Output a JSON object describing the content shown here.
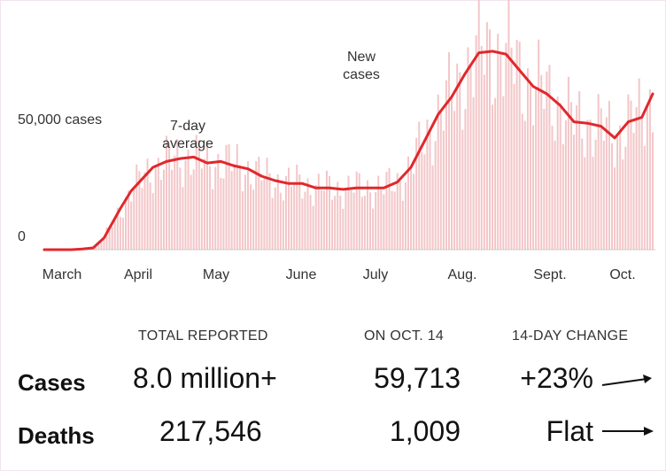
{
  "chart_data": {
    "type": "bar",
    "series": [
      {
        "name": "New cases",
        "style": "daily bars",
        "color": "#f3c6c8"
      },
      {
        "name": "7-day average",
        "style": "line",
        "color": "#e0282c",
        "x": [
          0,
          5,
          10,
          14,
          18,
          22,
          25,
          28,
          32,
          36,
          40,
          45,
          50,
          55,
          60,
          65,
          70,
          75,
          80,
          85,
          90,
          95,
          100,
          105,
          110,
          115,
          120,
          125,
          130,
          135,
          140,
          145,
          150,
          155,
          160,
          165,
          170,
          175,
          180,
          185,
          190,
          195,
          200,
          205,
          210,
          215,
          220,
          224
        ],
        "values": [
          0,
          0,
          0,
          200,
          600,
          4000,
          9000,
          14000,
          20000,
          24000,
          28000,
          30000,
          31000,
          31500,
          29500,
          30000,
          28500,
          27500,
          25000,
          23500,
          22500,
          22500,
          21000,
          21000,
          20500,
          21000,
          21000,
          21000,
          23000,
          28000,
          37000,
          46000,
          52000,
          60000,
          67000,
          67500,
          66500,
          61000,
          55500,
          53000,
          49000,
          43500,
          43000,
          42000,
          38000,
          43500,
          45000,
          53000
        ]
      }
    ],
    "y_labels": [
      "50,000 cases",
      "0"
    ],
    "x_labels": [
      "March",
      "April",
      "May",
      "June",
      "July",
      "Aug.",
      "Sept.",
      "Oct."
    ],
    "annotations": [
      "New cases",
      "7-day average"
    ],
    "ylim": [
      0,
      75000
    ],
    "grid": false
  },
  "stats": {
    "columns": [
      "TOTAL REPORTED",
      "ON OCT. 14",
      "14-DAY CHANGE"
    ],
    "rows": [
      {
        "label": "Cases",
        "total": "8.0 million+",
        "day": "59,713",
        "change": "+23%",
        "trend": "up"
      },
      {
        "label": "Deaths",
        "total": "217,546",
        "day": "1,009",
        "change": "Flat",
        "trend": "flat"
      }
    ]
  }
}
